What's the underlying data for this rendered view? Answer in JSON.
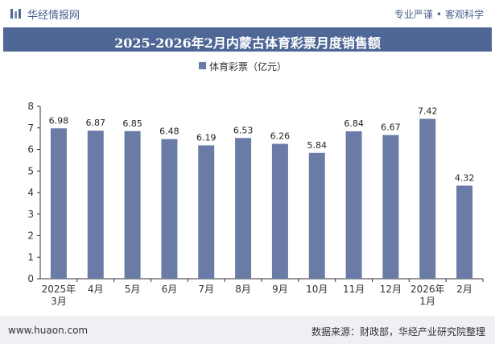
{
  "header": {
    "brand": "华经情报网",
    "slogan_left": "专业严谨",
    "slogan_right": "客观科学"
  },
  "footer": {
    "website": "www.huaon.com",
    "source": "数据来源：财政部，华经产业研究院整理"
  },
  "colors": {
    "bar": "#6a7ba6",
    "title_bg": "#4e6797",
    "footer_bg": "#eef0f4"
  },
  "chart_data": {
    "type": "bar",
    "title": "2025-2026年2月内蒙古体育彩票月度销售额",
    "categories": [
      "2025年\n3月",
      "4月",
      "5月",
      "6月",
      "7月",
      "8月",
      "9月",
      "10月",
      "11月",
      "12月",
      "2026年\n1月",
      "2月"
    ],
    "series": [
      {
        "name": "体育彩票（亿元）",
        "values": [
          6.98,
          6.87,
          6.85,
          6.48,
          6.19,
          6.53,
          6.26,
          5.84,
          6.84,
          6.67,
          7.42,
          4.32
        ]
      }
    ],
    "ylim": [
      0,
      8
    ],
    "yticks": [
      0,
      1,
      2,
      3,
      4,
      5,
      6,
      7,
      8
    ],
    "grid": false,
    "legend": "top-center"
  }
}
